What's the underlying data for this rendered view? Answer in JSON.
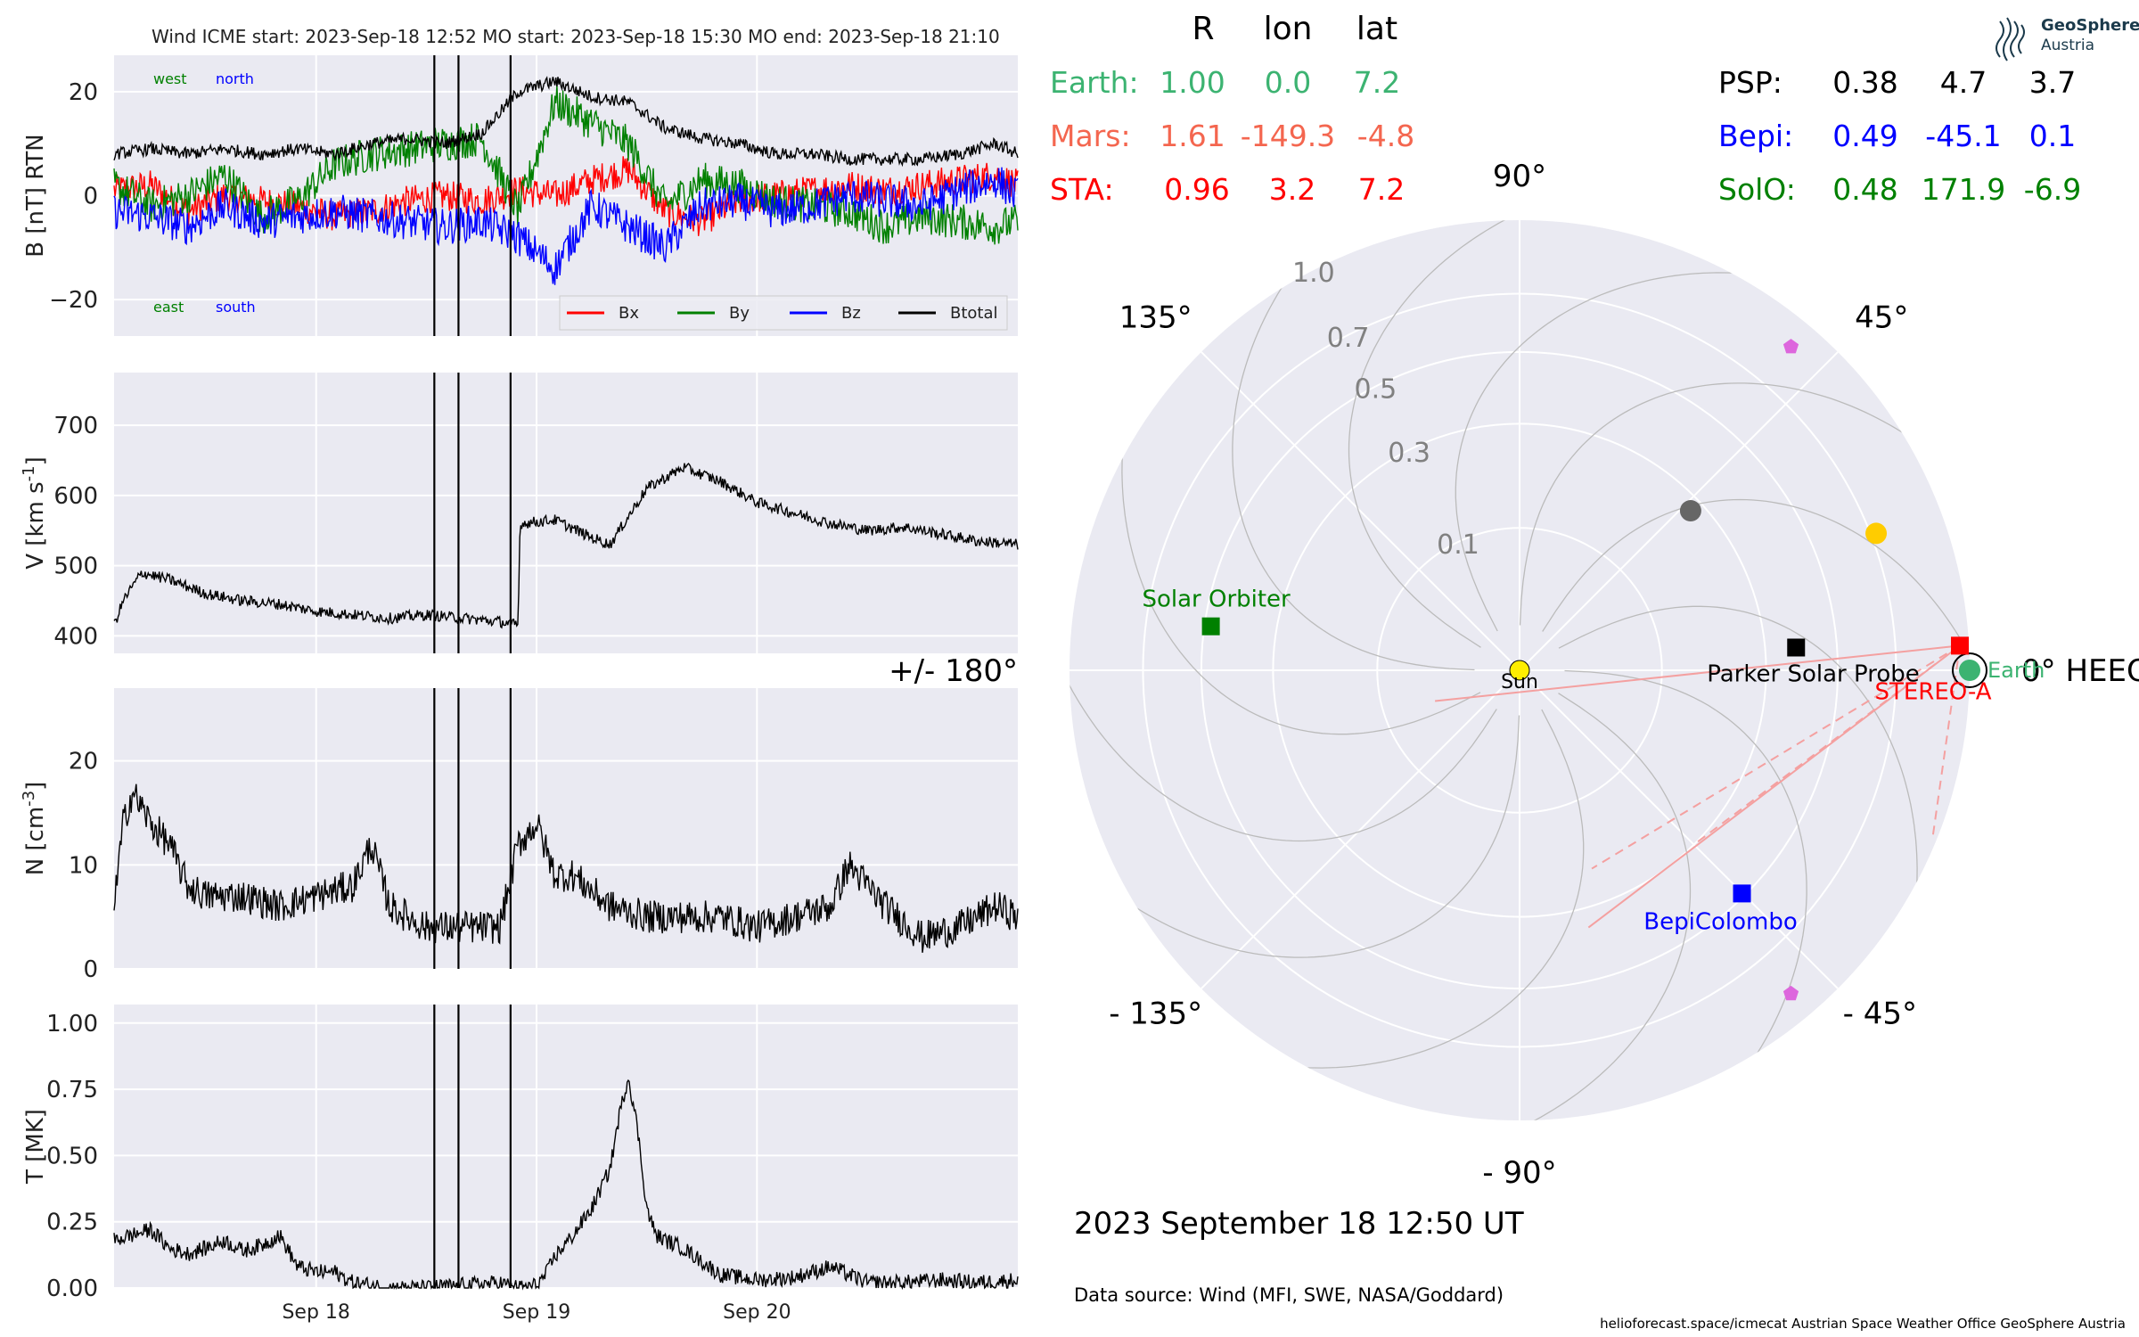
{
  "header": {
    "text": "Wind    ICME start: 2023-Sep-18 12:52   MO start: 2023-Sep-18 15:30   MO end: 2023-Sep-18 21:10"
  },
  "logo": {
    "line1": "GeoSphere",
    "line2": "Austria"
  },
  "positions_table": {
    "columns": [
      "R",
      "lon",
      "lat"
    ],
    "rows": [
      {
        "name": "Earth:",
        "R": "1.00",
        "lon": "0.0",
        "lat": "7.2",
        "color": "#3cb371"
      },
      {
        "name": "Mars:",
        "R": "1.61",
        "lon": "-149.3",
        "lat": "-4.8",
        "color": "#f4664f"
      },
      {
        "name": "STA:",
        "R": "0.96",
        "lon": "3.2",
        "lat": "7.2",
        "color": "#ff0000"
      },
      {
        "name": "PSP:",
        "R": "0.38",
        "lon": "4.7",
        "lat": "3.7",
        "color": "#000000"
      },
      {
        "name": "Bepi:",
        "R": "0.49",
        "lon": "-45.1",
        "lat": "0.1",
        "color": "#0000ff"
      },
      {
        "name": "SolO:",
        "R": "0.48",
        "lon": "171.9",
        "lat": "-6.9",
        "color": "#008000"
      }
    ]
  },
  "timestamp": "2023 September 18  12:50 UT",
  "data_source": "Data source: Wind (MFI, SWE, NASA/Goddard)",
  "footer": "helioforecast.space/icmecat   Austrian Space Weather Office   GeoSphere Austria",
  "chart_data": [
    {
      "type": "line",
      "ylabel": "B [nT] RTN",
      "ylim": [
        -27,
        27
      ],
      "yticks": [
        -20,
        0,
        20
      ],
      "ytick_labels": [
        "−20",
        "0",
        "20"
      ],
      "x_range_hours": [
        0,
        98.4
      ],
      "x_axis_start": "2023-09-17 02:00",
      "x_ticks": [
        "Sep 18",
        "Sep 19",
        "Sep 20"
      ],
      "event_lines": [
        "ICME start 2023-09-18 12:52",
        "MO start 2023-09-18 15:30",
        "MO end 2023-09-18 21:10"
      ],
      "annotations": [
        {
          "text": "west",
          "color": "#008000"
        },
        {
          "text": "north",
          "color": "#0000ff"
        },
        {
          "text": "east",
          "color": "#008000"
        },
        {
          "text": "south",
          "color": "#0000ff"
        }
      ],
      "legend": [
        "Bx",
        "By",
        "Bz",
        "Btotal"
      ],
      "legend_placement": "lower-right",
      "series": [
        {
          "name": "Bx",
          "color": "#ff0000",
          "x": [
            0,
            4,
            8,
            12,
            16,
            20,
            24,
            28,
            32,
            36,
            40,
            44,
            48,
            52,
            56,
            60,
            64,
            68,
            72,
            76,
            80,
            84,
            88,
            92,
            96,
            98.4
          ],
          "y": [
            1,
            2,
            -3,
            0,
            -1,
            -2,
            -4,
            -3,
            -1,
            0,
            -1,
            1,
            0,
            3,
            5,
            -3,
            -5,
            -1,
            0,
            1,
            2,
            1,
            2,
            3,
            4,
            2
          ]
        },
        {
          "name": "By",
          "color": "#008000",
          "x": [
            0,
            4,
            8,
            12,
            16,
            20,
            24,
            28,
            32,
            36,
            40,
            44,
            48,
            52,
            56,
            60,
            64,
            68,
            72,
            76,
            80,
            84,
            88,
            92,
            96,
            98.4
          ],
          "y": [
            2,
            -2,
            0,
            4,
            -4,
            -1,
            6,
            8,
            9,
            10,
            11,
            -3,
            18,
            14,
            10,
            -2,
            3,
            2,
            -1,
            -2,
            -3,
            -6,
            -4,
            -5,
            -6,
            -5
          ]
        },
        {
          "name": "Bz",
          "color": "#0000ff",
          "x": [
            0,
            4,
            8,
            12,
            16,
            20,
            24,
            28,
            32,
            36,
            40,
            44,
            48,
            52,
            56,
            60,
            64,
            68,
            72,
            76,
            80,
            84,
            88,
            92,
            96,
            98.4
          ],
          "y": [
            -3,
            -4,
            -6,
            -2,
            -5,
            -4,
            -3,
            -4,
            -5,
            -6,
            -5,
            -8,
            -14,
            -2,
            -6,
            -10,
            -2,
            -1,
            -3,
            -2,
            0,
            -1,
            -2,
            1,
            3,
            0
          ]
        },
        {
          "name": "Btotal",
          "color": "#000000",
          "x": [
            0,
            4,
            8,
            12,
            16,
            20,
            24,
            28,
            32,
            36,
            40,
            44,
            48,
            52,
            56,
            60,
            64,
            68,
            72,
            76,
            80,
            84,
            88,
            92,
            96,
            98.4
          ],
          "y": [
            8,
            9,
            8,
            9,
            8,
            9,
            8,
            10,
            11,
            10,
            12,
            20,
            22,
            19,
            18,
            13,
            11,
            10,
            8,
            8,
            7,
            7,
            7,
            8,
            10,
            8
          ]
        }
      ]
    },
    {
      "type": "line",
      "ylabel": "V [km s$^{-1}$]",
      "ylim": [
        375,
        775
      ],
      "yticks": [
        400,
        500,
        600,
        700
      ],
      "ytick_labels": [
        "400",
        "500",
        "600",
        "700"
      ],
      "x_ticks": [
        "Sep 18",
        "Sep 19",
        "Sep 20"
      ],
      "series": [
        {
          "name": "V",
          "color": "#000000",
          "x": [
            0,
            1,
            3,
            6,
            10,
            14,
            18,
            22,
            26,
            30,
            34,
            38,
            42,
            44,
            44.2,
            48,
            52,
            54,
            58,
            62,
            66,
            70,
            74,
            78,
            82,
            86,
            90,
            94,
            98.4
          ],
          "y": [
            415,
            450,
            490,
            480,
            460,
            450,
            445,
            435,
            430,
            425,
            430,
            425,
            420,
            415,
            560,
            565,
            540,
            530,
            610,
            640,
            620,
            590,
            575,
            560,
            550,
            555,
            545,
            535,
            530
          ]
        }
      ]
    },
    {
      "type": "line",
      "ylabel": "N [cm$^{-3}$]",
      "ylim": [
        0,
        27
      ],
      "yticks": [
        0,
        10,
        20
      ],
      "ytick_labels": [
        "0",
        "10",
        "20"
      ],
      "x_ticks": [
        "Sep 18",
        "Sep 19",
        "Sep 20"
      ],
      "series": [
        {
          "name": "N",
          "color": "#000000",
          "x": [
            0,
            1,
            2,
            4,
            6,
            8,
            10,
            14,
            18,
            22,
            26,
            28,
            30,
            34,
            38,
            42,
            44,
            46,
            48,
            50,
            54,
            58,
            62,
            66,
            70,
            74,
            78,
            80,
            84,
            88,
            92,
            96,
            98.4
          ],
          "y": [
            6,
            14,
            17,
            14,
            12,
            8,
            7,
            7,
            6,
            7,
            8,
            12,
            6,
            4,
            4,
            4,
            12,
            14,
            9,
            9,
            6,
            5,
            5,
            5,
            4,
            5,
            6,
            10,
            6,
            3,
            4,
            6,
            5
          ]
        }
      ]
    },
    {
      "type": "line",
      "ylabel": "T [MK]",
      "ylim": [
        0,
        1.07
      ],
      "yticks": [
        0,
        0.25,
        0.5,
        0.75,
        1.0
      ],
      "ytick_labels": [
        "0.00",
        "0.25",
        "0.50",
        "0.75",
        "1.00"
      ],
      "x_ticks": [
        "Sep 18",
        "Sep 19",
        "Sep 20"
      ],
      "series": [
        {
          "name": "T",
          "color": "#000000",
          "x": [
            0,
            2,
            4,
            6,
            8,
            10,
            12,
            14,
            16,
            18,
            20,
            22,
            24,
            26,
            28,
            30,
            34,
            38,
            42,
            44,
            46,
            47,
            48,
            50,
            52,
            54,
            55,
            56,
            57,
            58,
            59,
            60,
            62,
            64,
            66,
            70,
            74,
            78,
            82,
            86,
            90,
            94,
            98.4
          ],
          "y": [
            0.18,
            0.2,
            0.22,
            0.15,
            0.13,
            0.15,
            0.18,
            0.14,
            0.16,
            0.2,
            0.08,
            0.06,
            0.06,
            0.02,
            0.01,
            0.0,
            0.0,
            0.01,
            0.02,
            0.0,
            0.01,
            0.05,
            0.12,
            0.2,
            0.3,
            0.45,
            0.65,
            0.8,
            0.6,
            0.3,
            0.2,
            0.18,
            0.15,
            0.1,
            0.05,
            0.03,
            0.04,
            0.08,
            0.02,
            0.02,
            0.03,
            0.02,
            0.03
          ]
        }
      ]
    },
    {
      "type": "scatter",
      "subtype": "polar",
      "title": "",
      "angle_labels": [
        "90°",
        "45°",
        "0° HEEQ",
        "- 45°",
        "- 90°",
        "- 135°",
        "+/- 180°",
        "135°"
      ],
      "radial_ticks": [
        0.1,
        0.3,
        0.5,
        0.7,
        1.0
      ],
      "radial_tick_labels": [
        "0.1",
        "0.3",
        "0.5",
        "0.7",
        "1.0"
      ],
      "bodies": [
        {
          "label": "Sun",
          "r": 0.0,
          "lon": 0,
          "color": "#ffee00",
          "marker": "circle"
        },
        {
          "label": "Earth",
          "r": 1.0,
          "lon": 0.0,
          "color": "#3cb371",
          "marker": "circle"
        },
        {
          "label": "STEREO-A",
          "r": 0.96,
          "lon": 3.2,
          "color": "#ff0000",
          "marker": "square"
        },
        {
          "label": "Parker Solar Probe",
          "r": 0.38,
          "lon": 4.7,
          "color": "#000000",
          "marker": "square"
        },
        {
          "label": "BepiColombo",
          "r": 0.49,
          "lon": -45.1,
          "color": "#0000ff",
          "marker": "square"
        },
        {
          "label": "Solar Orbiter",
          "r": 0.48,
          "lon": 171.9,
          "color": "#008000",
          "marker": "square"
        },
        {
          "label": "",
          "r": 0.27,
          "lon": 43,
          "color": "#666666",
          "marker": "circle"
        },
        {
          "label": "",
          "r": 0.72,
          "lon": 21,
          "color": "#ffcc00",
          "marker": "circle"
        },
        {
          "label": "",
          "r": 0.88,
          "lon": 50,
          "color": "#dd66dd",
          "marker": "pentagon"
        },
        {
          "label": "",
          "r": 0.88,
          "lon": -50,
          "color": "#dd66dd",
          "marker": "pentagon"
        }
      ]
    }
  ]
}
